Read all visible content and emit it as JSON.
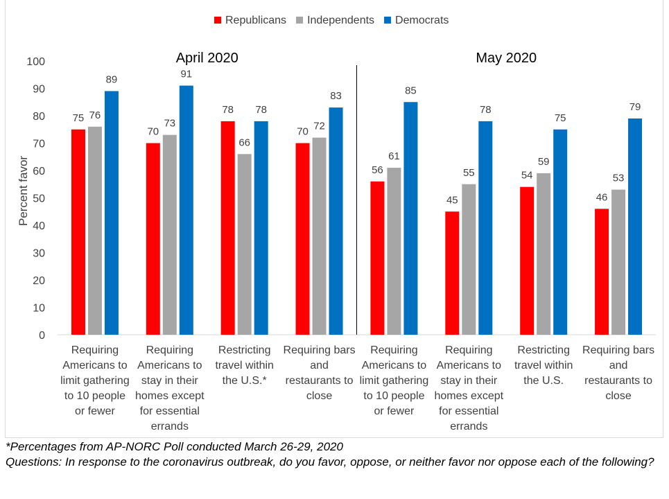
{
  "chart_data": {
    "type": "bar",
    "title": "",
    "ylabel": "Percent favor",
    "ylim": [
      0,
      100
    ],
    "yticks": [
      0,
      10,
      20,
      30,
      40,
      50,
      60,
      70,
      80,
      90,
      100
    ],
    "grid": false,
    "legend_position": "top",
    "groups": [
      {
        "label": "April 2020",
        "categories": [
          0,
          1,
          2,
          3
        ]
      },
      {
        "label": "May 2020",
        "categories": [
          4,
          5,
          6,
          7
        ]
      }
    ],
    "categories": [
      [
        "Requiring",
        "Americans to",
        "limit gathering",
        "to 10 people",
        "or fewer"
      ],
      [
        "Requiring",
        "Americans to",
        "stay in their",
        "homes except",
        "for essential",
        "errands"
      ],
      [
        "Restricting",
        "travel within",
        "the U.S.*"
      ],
      [
        "Requiring bars",
        "and",
        "restaurants to",
        "close"
      ],
      [
        "Requiring",
        "Americans to",
        "limit gathering",
        "to 10 people",
        "or fewer"
      ],
      [
        "Requiring",
        "Americans to",
        "stay in their",
        "homes except",
        "for essential",
        "errands"
      ],
      [
        "Restricting",
        "travel within",
        "the U.S."
      ],
      [
        "Requiring bars",
        "and",
        "restaurants to",
        "close"
      ]
    ],
    "series": [
      {
        "name": "Republicans",
        "color": "#ff0000",
        "values": [
          75,
          70,
          78,
          70,
          56,
          45,
          54,
          46
        ]
      },
      {
        "name": "Independents",
        "color": "#a6a6a6",
        "values": [
          76,
          73,
          66,
          72,
          61,
          55,
          59,
          53
        ]
      },
      {
        "name": "Democrats",
        "color": "#0070c0",
        "values": [
          89,
          91,
          78,
          83,
          85,
          78,
          75,
          79
        ]
      }
    ]
  },
  "notes": {
    "footnote": "*Percentages from AP-NORC Poll conducted March 26-29, 2020",
    "questions": "Questions: In response to the coronavirus outbreak, do you favor, oppose, or neither favor nor oppose each of the following?"
  }
}
